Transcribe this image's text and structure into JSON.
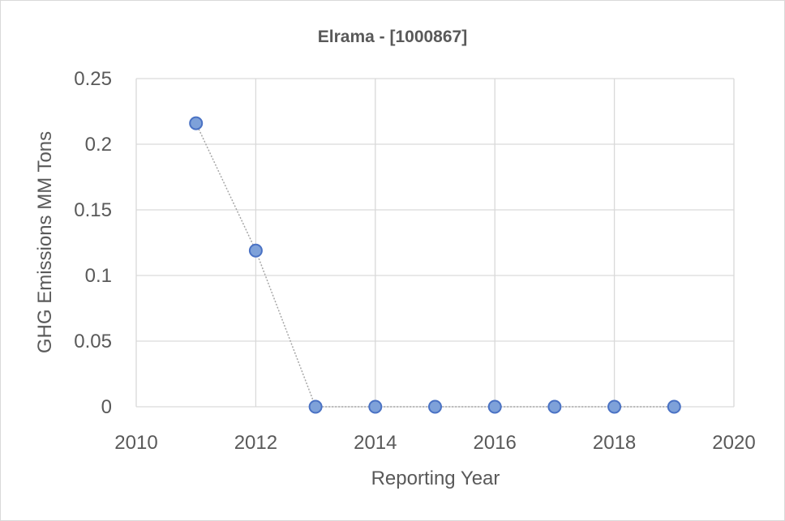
{
  "chart_data": {
    "type": "scatter",
    "title": "Elrama - [1000867]",
    "xlabel": "Reporting Year",
    "ylabel": "GHG Emissions MM Tons",
    "xlim": [
      2010,
      2020
    ],
    "ylim": [
      0,
      0.25
    ],
    "x_ticks": [
      2010,
      2012,
      2014,
      2016,
      2018,
      2020
    ],
    "x_tick_labels": [
      "2010",
      "2012",
      "2014",
      "2016",
      "2018",
      "2020"
    ],
    "y_ticks": [
      0,
      0.05,
      0.1,
      0.15,
      0.2,
      0.25
    ],
    "y_tick_labels": [
      "0",
      "0.05",
      "0.1",
      "0.15",
      "0.2",
      "0.25"
    ],
    "grid": true,
    "series": [
      {
        "x": [
          2011,
          2012,
          2013,
          2014,
          2015,
          2016,
          2017,
          2018,
          2019
        ],
        "y": [
          0.216,
          0.119,
          0,
          0,
          0,
          0,
          0,
          0,
          0
        ]
      }
    ],
    "colors": {
      "marker_fill": "#7ea1d9",
      "marker_stroke": "#4a72c4",
      "line": "#a6a6a6",
      "grid": "#d9d9d9",
      "text": "#595959"
    }
  }
}
